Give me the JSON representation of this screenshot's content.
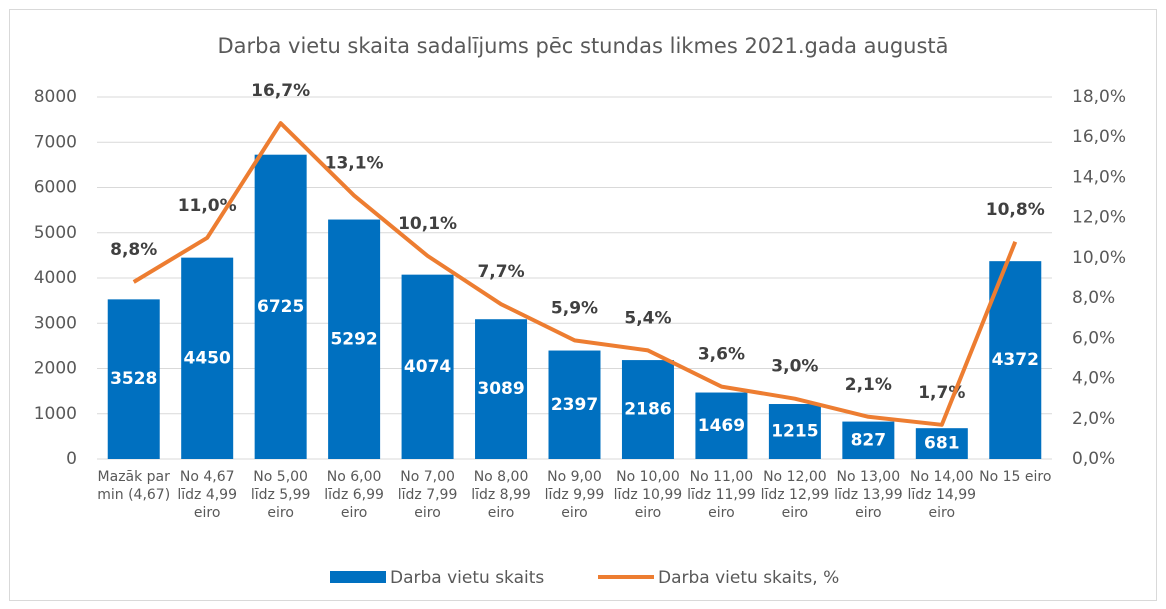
{
  "chart_data": {
    "type": "bar",
    "title": "Darba vietu skaita sadalījums pēc stundas likmes 2021.gada augustā",
    "categories": [
      "Mazāk par min (4,67)",
      "No 4,67 līdz 4,99 eiro",
      "No 5,00 līdz 5,99 eiro",
      "No 6,00 līdz 6,99 eiro",
      "No 7,00 līdz 7,99 eiro",
      "No 8,00 līdz 8,99 eiro",
      "No 9,00 līdz 9,99 eiro",
      "No 10,00 līdz 10,99 eiro",
      "No 11,00 līdz 11,99 eiro",
      "No 12,00 līdz 12,99 eiro",
      "No 13,00 līdz 13,99 eiro",
      "No 14,00 līdz 14,99 eiro",
      "No 15 eiro"
    ],
    "series": [
      {
        "name": "Darba vietu skaits",
        "type": "bar",
        "color": "#0070c0",
        "values": [
          3528,
          4450,
          6725,
          5292,
          4074,
          3089,
          2397,
          2186,
          1469,
          1215,
          827,
          681,
          4372
        ]
      },
      {
        "name": "Darba vietu skaits, %",
        "type": "line",
        "axis": "y2",
        "color": "#ed7d31",
        "values": [
          8.8,
          11.0,
          16.7,
          13.1,
          10.1,
          7.7,
          5.9,
          5.4,
          3.6,
          3.0,
          2.1,
          1.7,
          10.8
        ],
        "value_labels": [
          "8,8%",
          "11,0%",
          "16,7%",
          "13,1%",
          "10,1%",
          "7,7%",
          "5,9%",
          "5,4%",
          "3,6%",
          "3,0%",
          "2,1%",
          "1,7%",
          "10,8%"
        ]
      }
    ],
    "ylim": [
      0,
      8000
    ],
    "yticks": [
      0,
      1000,
      2000,
      3000,
      4000,
      5000,
      6000,
      7000,
      8000
    ],
    "y2lim": [
      0,
      18
    ],
    "y2ticks": [
      {
        "value": 0,
        "label": "0,0%"
      },
      {
        "value": 2,
        "label": "2,0%"
      },
      {
        "value": 4,
        "label": "4,0%"
      },
      {
        "value": 6,
        "label": "6,0%"
      },
      {
        "value": 8,
        "label": "8,0%"
      },
      {
        "value": 10,
        "label": "10,0%"
      },
      {
        "value": 12,
        "label": "12,0%"
      },
      {
        "value": 14,
        "label": "14,0%"
      },
      {
        "value": 16,
        "label": "16,0%"
      },
      {
        "value": 18,
        "label": "18,0%"
      }
    ],
    "grid": true,
    "legend": "bottom"
  }
}
